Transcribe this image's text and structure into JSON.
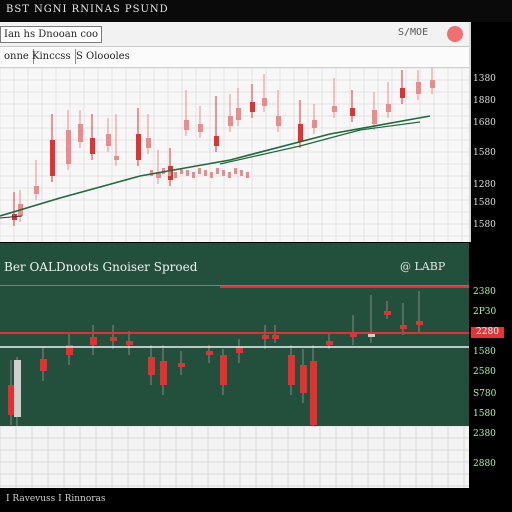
{
  "app": {
    "title": "BST  NGNI   RNINAS  PSUND"
  },
  "top_window": {
    "toolbar": {
      "field1": "Ian  hs  Dnooan  coo",
      "tabs": [
        "onne",
        "Kinccss",
        "S  Oloooles"
      ],
      "controls": "S/MOE"
    },
    "price_axis": [
      "1380",
      "1880",
      "1680",
      "1580",
      "1280",
      "1580",
      "1580",
      "1580"
    ]
  },
  "bottom_panel": {
    "title": "Ber   OALDnoots  Gnoiser  Sproed",
    "meta": "@ LABP",
    "axis": [
      "2380",
      "2P30",
      "1580",
      "2580",
      "2580",
      "S780",
      "1580",
      "2380",
      "2880"
    ],
    "highlight_label": "2280"
  },
  "status": {
    "text": "I   Ravevuss   I  Rinnoras"
  },
  "colors": {
    "bull": "#f08a8a",
    "bear": "#e53030",
    "panel_bg": "#23503c",
    "trend_line": "#1d6a3a"
  }
}
